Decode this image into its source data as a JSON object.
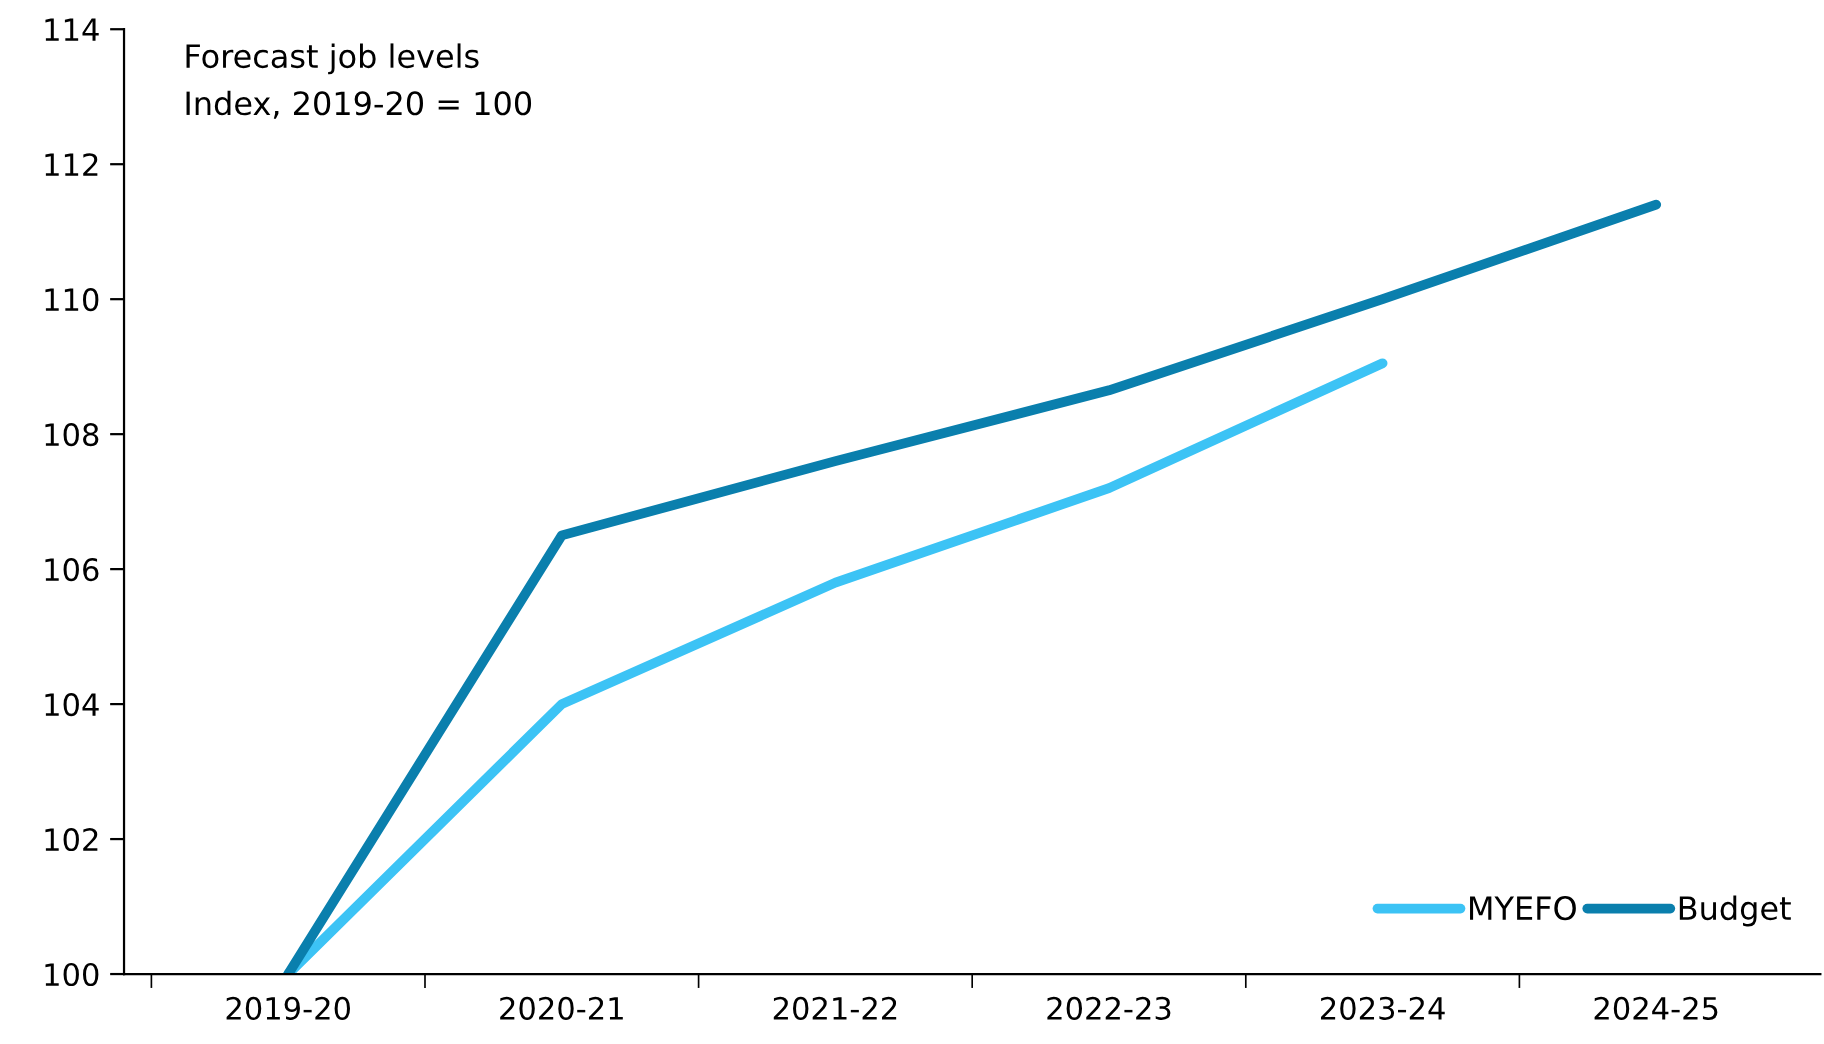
{
  "chart_data": {
    "type": "line",
    "title": "Forecast job levels",
    "subtitle": "Index, 2019-20 = 100",
    "categories": [
      "2019-20",
      "2020-21",
      "2021-22",
      "2022-23",
      "2023-24",
      "2024-25"
    ],
    "series": [
      {
        "name": "MYEFO",
        "color": "#3cc3f5",
        "values": [
          100,
          104.0,
          105.8,
          107.2,
          109.05,
          null
        ]
      },
      {
        "name": "Budget",
        "color": "#0a7fad",
        "values": [
          100,
          106.5,
          107.6,
          108.65,
          110.0,
          111.4
        ]
      }
    ],
    "ylim": [
      100,
      114
    ],
    "yticks": [
      100,
      102,
      104,
      106,
      108,
      110,
      112,
      114
    ],
    "grid": false,
    "legend": "bottom right",
    "marker": "none",
    "line_style": "solid"
  }
}
